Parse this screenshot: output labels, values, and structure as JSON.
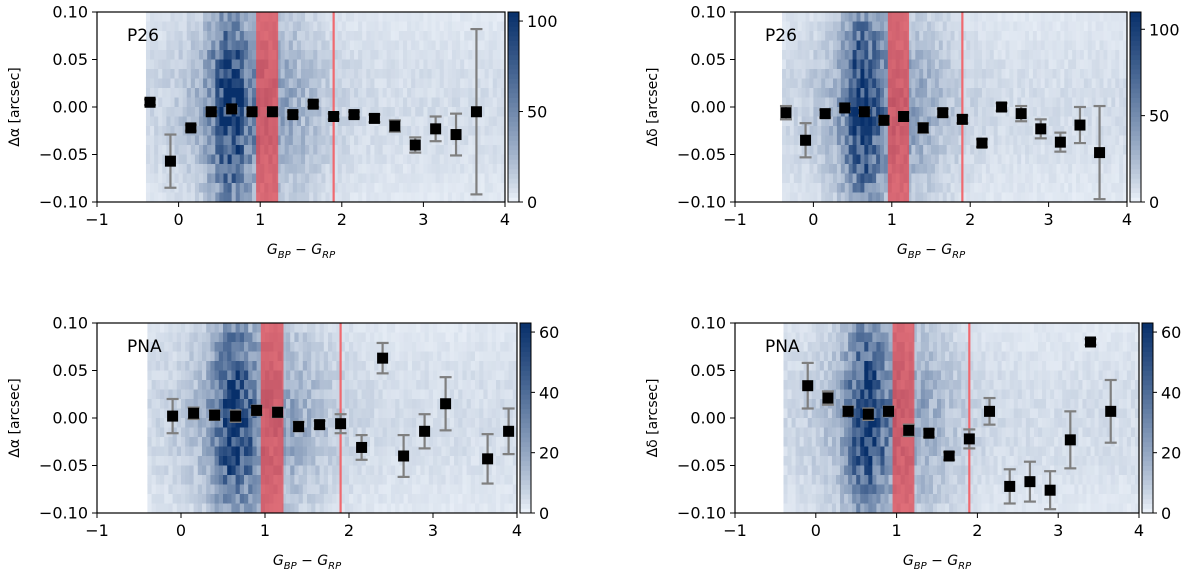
{
  "colors": {
    "heat_light": "#f1f6fc",
    "heat_dark": "#08306b",
    "band_fill": "#e8474f",
    "band_line": "#f0696f",
    "marker": "#000000",
    "errorbar": "#7f7f7f"
  },
  "chart_data": [
    {
      "type": "scatter",
      "panel_label": "P26",
      "ylabel": "Δα [arcsec]",
      "xlabel": "G_BP − G_RP",
      "xlim": [
        -1,
        4
      ],
      "ylim": [
        -0.1,
        0.1
      ],
      "xticks": [
        "−1",
        "0",
        "1",
        "2",
        "3",
        "4"
      ],
      "yticks": [
        "−0.10",
        "−0.05",
        "0.00",
        "0.05",
        "0.10"
      ],
      "colorbar": {
        "max": 105,
        "ticks": [
          "0",
          "50",
          "100"
        ]
      },
      "band": [
        0.95,
        1.22
      ],
      "line": 1.9,
      "points": [
        {
          "x": -0.35,
          "y": 0.005,
          "err": 0.003
        },
        {
          "x": -0.1,
          "y": -0.057,
          "err": 0.028
        },
        {
          "x": 0.15,
          "y": -0.022,
          "err": 0.003
        },
        {
          "x": 0.4,
          "y": -0.005,
          "err": 0.003
        },
        {
          "x": 0.65,
          "y": -0.002,
          "err": 0.003
        },
        {
          "x": 0.9,
          "y": -0.005,
          "err": 0.003
        },
        {
          "x": 1.15,
          "y": -0.005,
          "err": 0.003
        },
        {
          "x": 1.4,
          "y": -0.008,
          "err": 0.003
        },
        {
          "x": 1.65,
          "y": 0.003,
          "err": 0.003
        },
        {
          "x": 1.9,
          "y": -0.01,
          "err": 0.003
        },
        {
          "x": 2.15,
          "y": -0.008,
          "err": 0.003
        },
        {
          "x": 2.4,
          "y": -0.012,
          "err": 0.004
        },
        {
          "x": 2.65,
          "y": -0.02,
          "err": 0.006
        },
        {
          "x": 2.9,
          "y": -0.04,
          "err": 0.008
        },
        {
          "x": 3.15,
          "y": -0.023,
          "err": 0.013
        },
        {
          "x": 3.4,
          "y": -0.029,
          "err": 0.022
        },
        {
          "x": 3.65,
          "y": -0.005,
          "err": 0.087
        }
      ]
    },
    {
      "type": "scatter",
      "panel_label": "P26",
      "ylabel": "Δδ [arcsec]",
      "xlabel": "G_BP − G_RP",
      "xlim": [
        -1,
        4
      ],
      "ylim": [
        -0.1,
        0.1
      ],
      "xticks": [
        "−1",
        "0",
        "1",
        "2",
        "3",
        "4"
      ],
      "yticks": [
        "−0.10",
        "−0.05",
        "0.00",
        "0.05",
        "0.10"
      ],
      "colorbar": {
        "max": 110,
        "ticks": [
          "0",
          "50",
          "100"
        ]
      },
      "band": [
        0.95,
        1.22
      ],
      "line": 1.9,
      "points": [
        {
          "x": -0.35,
          "y": -0.006,
          "err": 0.007
        },
        {
          "x": -0.1,
          "y": -0.035,
          "err": 0.018
        },
        {
          "x": 0.15,
          "y": -0.007,
          "err": 0.004
        },
        {
          "x": 0.4,
          "y": -0.001,
          "err": 0.004
        },
        {
          "x": 0.65,
          "y": -0.005,
          "err": 0.004
        },
        {
          "x": 0.9,
          "y": -0.014,
          "err": 0.004
        },
        {
          "x": 1.15,
          "y": -0.01,
          "err": 0.004
        },
        {
          "x": 1.4,
          "y": -0.022,
          "err": 0.005
        },
        {
          "x": 1.65,
          "y": -0.006,
          "err": 0.004
        },
        {
          "x": 1.9,
          "y": -0.013,
          "err": 0.004
        },
        {
          "x": 2.15,
          "y": -0.038,
          "err": 0.004
        },
        {
          "x": 2.4,
          "y": 0.0,
          "err": 0.004
        },
        {
          "x": 2.65,
          "y": -0.007,
          "err": 0.008
        },
        {
          "x": 2.9,
          "y": -0.023,
          "err": 0.01
        },
        {
          "x": 3.15,
          "y": -0.037,
          "err": 0.01
        },
        {
          "x": 3.4,
          "y": -0.019,
          "err": 0.019
        },
        {
          "x": 3.65,
          "y": -0.048,
          "err": 0.049
        }
      ]
    },
    {
      "type": "scatter",
      "panel_label": "PNA",
      "ylabel": "Δα [arcsec]",
      "xlabel": "G_BP − G_RP",
      "xlim": [
        -1,
        4
      ],
      "ylim": [
        -0.1,
        0.1
      ],
      "xticks": [
        "−1",
        "0",
        "1",
        "2",
        "3",
        "4"
      ],
      "yticks": [
        "−0.10",
        "−0.05",
        "0.00",
        "0.05",
        "0.10"
      ],
      "colorbar": {
        "max": 63,
        "ticks": [
          "0",
          "20",
          "40",
          "60"
        ]
      },
      "band": [
        0.95,
        1.22
      ],
      "line": 1.9,
      "points": [
        {
          "x": -0.1,
          "y": 0.002,
          "err": 0.018
        },
        {
          "x": 0.15,
          "y": 0.005,
          "err": 0.006
        },
        {
          "x": 0.4,
          "y": 0.003,
          "err": 0.005
        },
        {
          "x": 0.65,
          "y": 0.002,
          "err": 0.006
        },
        {
          "x": 0.9,
          "y": 0.008,
          "err": 0.005
        },
        {
          "x": 1.15,
          "y": 0.006,
          "err": 0.005
        },
        {
          "x": 1.4,
          "y": -0.009,
          "err": 0.005
        },
        {
          "x": 1.65,
          "y": -0.007,
          "err": 0.004
        },
        {
          "x": 1.9,
          "y": -0.006,
          "err": 0.01
        },
        {
          "x": 2.15,
          "y": -0.031,
          "err": 0.013
        },
        {
          "x": 2.4,
          "y": 0.063,
          "err": 0.016
        },
        {
          "x": 2.65,
          "y": -0.04,
          "err": 0.022
        },
        {
          "x": 2.9,
          "y": -0.014,
          "err": 0.018
        },
        {
          "x": 3.15,
          "y": 0.015,
          "err": 0.028
        },
        {
          "x": 3.65,
          "y": -0.043,
          "err": 0.026
        },
        {
          "x": 3.9,
          "y": -0.014,
          "err": 0.024
        }
      ]
    },
    {
      "type": "scatter",
      "panel_label": "PNA",
      "ylabel": "Δδ [arcsec]",
      "xlabel": "G_BP − G_RP",
      "xlim": [
        -1,
        4
      ],
      "ylim": [
        -0.1,
        0.1
      ],
      "xticks": [
        "−1",
        "0",
        "1",
        "2",
        "3",
        "4"
      ],
      "yticks": [
        "−0.10",
        "−0.05",
        "0.00",
        "0.05",
        "0.10"
      ],
      "colorbar": {
        "max": 63,
        "ticks": [
          "0",
          "20",
          "40",
          "60"
        ]
      },
      "band": [
        0.95,
        1.22
      ],
      "line": 1.9,
      "points": [
        {
          "x": -0.1,
          "y": 0.034,
          "err": 0.024
        },
        {
          "x": 0.15,
          "y": 0.021,
          "err": 0.007
        },
        {
          "x": 0.4,
          "y": 0.007,
          "err": 0.005
        },
        {
          "x": 0.65,
          "y": 0.004,
          "err": 0.006
        },
        {
          "x": 0.9,
          "y": 0.007,
          "err": 0.005
        },
        {
          "x": 1.15,
          "y": -0.013,
          "err": 0.006
        },
        {
          "x": 1.4,
          "y": -0.016,
          "err": 0.004
        },
        {
          "x": 1.65,
          "y": -0.04,
          "err": 0.004
        },
        {
          "x": 1.9,
          "y": -0.022,
          "err": 0.01
        },
        {
          "x": 2.15,
          "y": 0.007,
          "err": 0.014
        },
        {
          "x": 2.4,
          "y": -0.072,
          "err": 0.018
        },
        {
          "x": 2.65,
          "y": -0.067,
          "err": 0.021
        },
        {
          "x": 2.9,
          "y": -0.076,
          "err": 0.02
        },
        {
          "x": 3.15,
          "y": -0.023,
          "err": 0.03
        },
        {
          "x": 3.4,
          "y": 0.08,
          "err": 0.003
        },
        {
          "x": 3.65,
          "y": 0.007,
          "err": 0.033
        }
      ]
    }
  ]
}
